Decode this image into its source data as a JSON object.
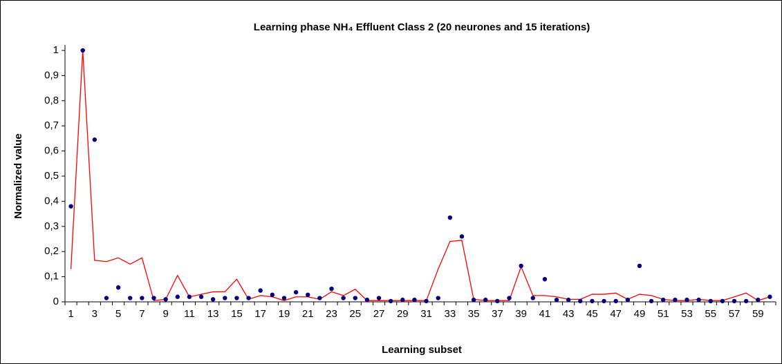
{
  "chart_data": {
    "type": "line",
    "title": "Learning phase NH₄ Effluent Class 2 (20 neurones and 15 iterations)",
    "x_label": "Learning subset",
    "y_label": "Normalized value",
    "categories": [
      1,
      null,
      3,
      null,
      5,
      null,
      7,
      null,
      9,
      null,
      11,
      null,
      13,
      null,
      15,
      null,
      17,
      null,
      19,
      null,
      21,
      null,
      23,
      null,
      25,
      null,
      27,
      null,
      29,
      null,
      31,
      null,
      33,
      null,
      35,
      null,
      37,
      null,
      39,
      null,
      41,
      null,
      43,
      null,
      45,
      null,
      47,
      null,
      49,
      null,
      51,
      null,
      53,
      null,
      55,
      null,
      57,
      null,
      59,
      null
    ],
    "series": [
      {
        "type": "line",
        "color": "#ff0000",
        "values": [
          0.13,
          1.0,
          0.165,
          0.16,
          0.175,
          0.15,
          0.175,
          0.005,
          0.01,
          0.105,
          0.02,
          0.03,
          0.04,
          0.04,
          0.09,
          0.01,
          0.025,
          0.02,
          0.005,
          0.02,
          0.02,
          0.01,
          0.04,
          0.025,
          0.05,
          0.005,
          0.005,
          0.005,
          0.005,
          0.005,
          0.005,
          0.13,
          0.24,
          0.245,
          0.01,
          0.005,
          0.005,
          0.005,
          0.14,
          0.025,
          0.025,
          0.02,
          0.01,
          0.01,
          0.03,
          0.03,
          0.035,
          0.01,
          0.03,
          0.025,
          0.01,
          0.005,
          0.005,
          0.01,
          0.005,
          0.005,
          0.02,
          0.035,
          0.005,
          0.02
        ]
      },
      {
        "type": "scatter",
        "color": "#000080",
        "values": [
          0.38,
          1.0,
          0.645,
          0.015,
          0.057,
          0.015,
          0.015,
          0.015,
          0.01,
          0.02,
          0.02,
          0.02,
          0.01,
          0.015,
          0.015,
          0.015,
          0.045,
          0.028,
          0.015,
          0.038,
          0.028,
          0.015,
          0.052,
          0.015,
          0.015,
          0.008,
          0.015,
          0.003,
          0.008,
          0.008,
          0.003,
          0.015,
          0.335,
          0.26,
          0.008,
          0.008,
          0.003,
          0.015,
          0.143,
          0.015,
          0.09,
          0.008,
          0.008,
          0.003,
          0.003,
          0.003,
          0.003,
          0.008,
          0.143,
          0.003,
          0.008,
          0.008,
          0.008,
          0.008,
          0.003,
          0.003,
          0.003,
          0.003,
          0.008,
          0.02
        ]
      }
    ],
    "ylim": [
      0,
      1
    ],
    "yticks": [
      0,
      {
        "value": 0.1,
        "label": "0,1"
      },
      {
        "value": 0.2,
        "label": "0,2"
      },
      {
        "value": 0.3,
        "label": "0,3"
      },
      {
        "value": 0.4,
        "label": "0,4"
      },
      {
        "value": 0.5,
        "label": "0,5"
      },
      {
        "value": 0.6,
        "label": "0,6"
      },
      {
        "value": 0.7,
        "label": "0,7"
      },
      {
        "value": 0.8,
        "label": "0,8"
      },
      {
        "value": 0.9,
        "label": "0,9"
      },
      1
    ],
    "grid": false
  }
}
